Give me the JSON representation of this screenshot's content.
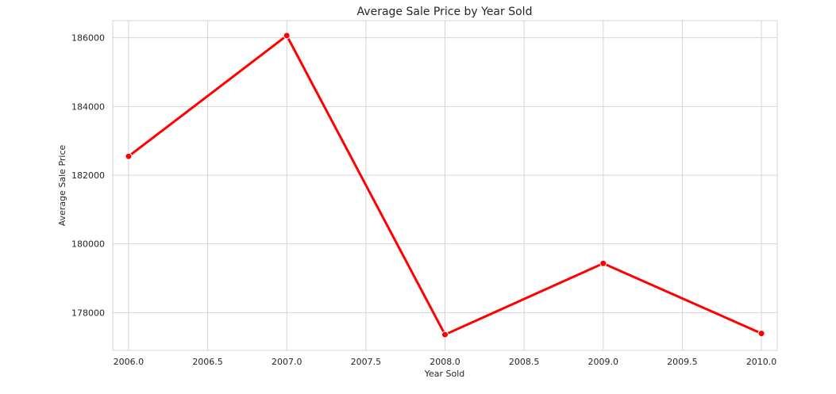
{
  "chart_data": {
    "type": "line",
    "title": "Average Sale Price by Year Sold",
    "xlabel": "Year Sold",
    "ylabel": "Average Sale Price",
    "x": [
      2006,
      2007,
      2008,
      2009,
      2010
    ],
    "series": [
      {
        "values": [
          182549,
          186063,
          177360,
          179432,
          177394
        ]
      }
    ],
    "xlim": [
      2005.9,
      2010.1
    ],
    "ylim": [
      176900,
      186500
    ],
    "xticks": [
      "2006.0",
      "2006.5",
      "2007.0",
      "2007.5",
      "2008.0",
      "2008.5",
      "2009.0",
      "2009.5",
      "2010.0"
    ],
    "yticks": [
      "178000",
      "180000",
      "182000",
      "184000",
      "186000"
    ],
    "grid": true,
    "line_color": "#ff0000",
    "marker": "circle"
  }
}
